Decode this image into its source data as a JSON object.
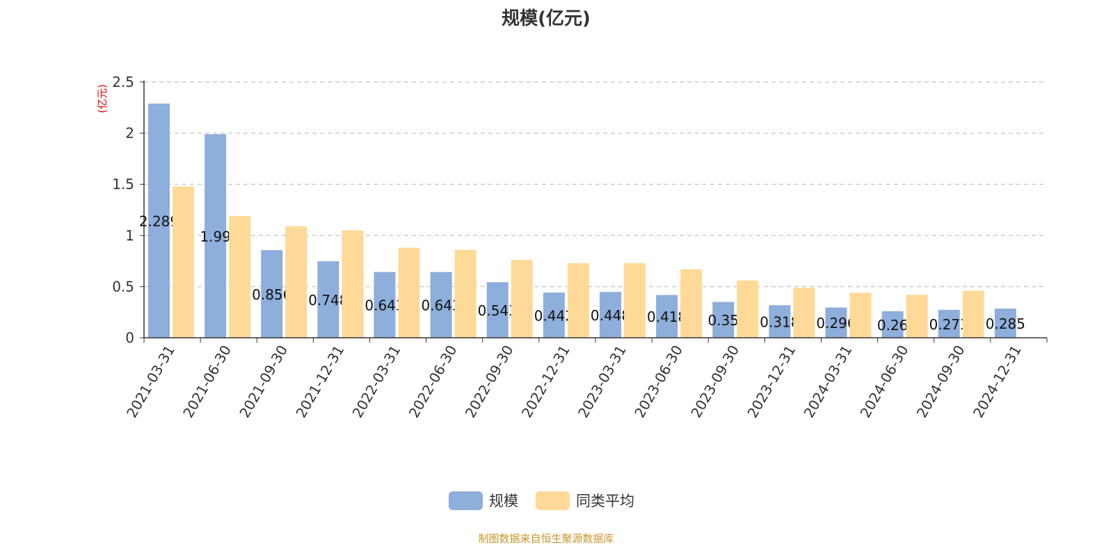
{
  "chart_data": {
    "type": "bar",
    "title": "规模(亿元)",
    "ylabel": "(亿元)",
    "ylim": [
      0,
      2.5
    ],
    "yticks": [
      "0",
      "0.5",
      "1",
      "1.5",
      "2",
      "2.5"
    ],
    "grid": true,
    "legend_position": "bottom",
    "categories": [
      "2021-03-31",
      "2021-06-30",
      "2021-09-30",
      "2021-12-31",
      "2022-03-31",
      "2022-06-30",
      "2022-09-30",
      "2022-12-31",
      "2023-03-31",
      "2023-06-30",
      "2023-09-30",
      "2023-12-31",
      "2024-03-31",
      "2024-06-30",
      "2024-09-30",
      "2024-12-31"
    ],
    "series": [
      {
        "name": "规模",
        "color": "#8eaedb",
        "values": [
          2.289,
          1.99,
          0.856,
          0.748,
          0.643,
          0.643,
          0.543,
          0.442,
          0.448,
          0.418,
          0.35,
          0.318,
          0.296,
          0.26,
          0.273,
          0.285
        ]
      },
      {
        "name": "同类平均",
        "color": "#ffd997",
        "values": [
          1.48,
          1.19,
          1.09,
          1.05,
          0.88,
          0.86,
          0.76,
          0.73,
          0.73,
          0.67,
          0.56,
          0.49,
          0.44,
          0.42,
          0.46,
          null
        ]
      }
    ]
  },
  "source": "制图数据来自恒生聚源数据库"
}
